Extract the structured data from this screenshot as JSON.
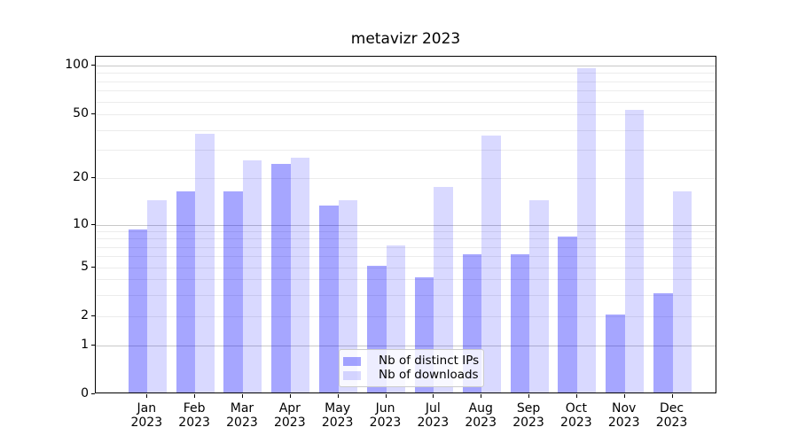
{
  "title": "metavizr 2023",
  "chart_data": {
    "type": "bar",
    "title": "metavizr 2023",
    "categories": [
      "Jan 2023",
      "Feb 2023",
      "Mar 2023",
      "Apr 2023",
      "May 2023",
      "Jun 2023",
      "Jul 2023",
      "Aug 2023",
      "Sep 2023",
      "Oct 2023",
      "Nov 2023",
      "Dec 2023"
    ],
    "x_months": [
      "Jan",
      "Feb",
      "Mar",
      "Apr",
      "May",
      "Jun",
      "Jul",
      "Aug",
      "Sep",
      "Oct",
      "Nov",
      "Dec"
    ],
    "x_year": "2023",
    "series": [
      {
        "name": "Nb of distinct IPs",
        "color": "#0000ff",
        "alpha": 0.35,
        "css_color": "rgba(0,0,255,0.35)",
        "values": [
          9,
          16,
          16,
          24,
          13,
          5,
          4,
          6,
          6,
          8,
          2,
          3
        ]
      },
      {
        "name": "Nb of downloads",
        "color": "#0000ff",
        "alpha": 0.15,
        "css_color": "rgba(0,0,255,0.15)",
        "values": [
          14,
          37,
          25,
          26,
          14,
          7,
          17,
          36,
          14,
          94,
          52,
          16
        ]
      }
    ],
    "xlabel": "",
    "ylabel": "",
    "y_axis": {
      "scale": "symlog",
      "ylim": [
        0,
        110
      ],
      "tick_labels": [
        "0",
        "1",
        "2",
        "5",
        "10",
        "20",
        "50",
        "100"
      ],
      "tick_values": [
        0,
        1,
        2,
        5,
        10,
        20,
        50,
        100
      ],
      "major_gridlines": [
        1,
        10,
        100
      ],
      "minor_gridlines": [
        2,
        3,
        4,
        5,
        6,
        7,
        8,
        9,
        20,
        30,
        40,
        50,
        60,
        70,
        80,
        90
      ]
    },
    "grid": true,
    "legend": {
      "entries": [
        "Nb of distinct IPs",
        "Nb of downloads"
      ],
      "position": "lower center, inside axes"
    }
  },
  "colors": {
    "bar_dark": "rgba(0,0,255,0.35)",
    "bar_light": "rgba(0,0,255,0.15)",
    "grid_major": "#c8c8c8",
    "grid_minor": "#ececec",
    "spine": "#000000",
    "text": "#000000",
    "legend_border": "#cccccc",
    "legend_bg": "rgba(255,255,255,0.8)"
  }
}
